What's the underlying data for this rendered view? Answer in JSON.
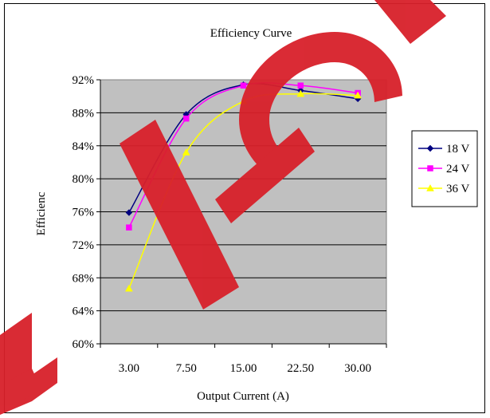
{
  "chart_data": {
    "type": "line",
    "title": "Efficiency Curve",
    "xlabel": "Output Current (A)",
    "ylabel": "Efficienc",
    "categories": [
      "3.00",
      "7.50",
      "15.00",
      "22.50",
      "30.00"
    ],
    "ylim": [
      0.6,
      0.92
    ],
    "yticks": [
      "60%",
      "64%",
      "68%",
      "72%",
      "76%",
      "80%",
      "84%",
      "88%",
      "92%"
    ],
    "grid": true,
    "legend_position": "right",
    "plot_background": "#c0c0c0",
    "series": [
      {
        "name": "18 V",
        "values": [
          0.759,
          0.878,
          0.914,
          0.907,
          0.897
        ],
        "color": "#000080",
        "marker": "diamond"
      },
      {
        "name": "24 V",
        "values": [
          0.741,
          0.873,
          0.913,
          0.913,
          0.904
        ],
        "color": "#ff00ff",
        "marker": "square"
      },
      {
        "name": "36 V",
        "values": [
          0.667,
          0.832,
          0.894,
          0.903,
          0.901
        ],
        "color": "#ffff00",
        "marker": "triangle"
      }
    ]
  }
}
